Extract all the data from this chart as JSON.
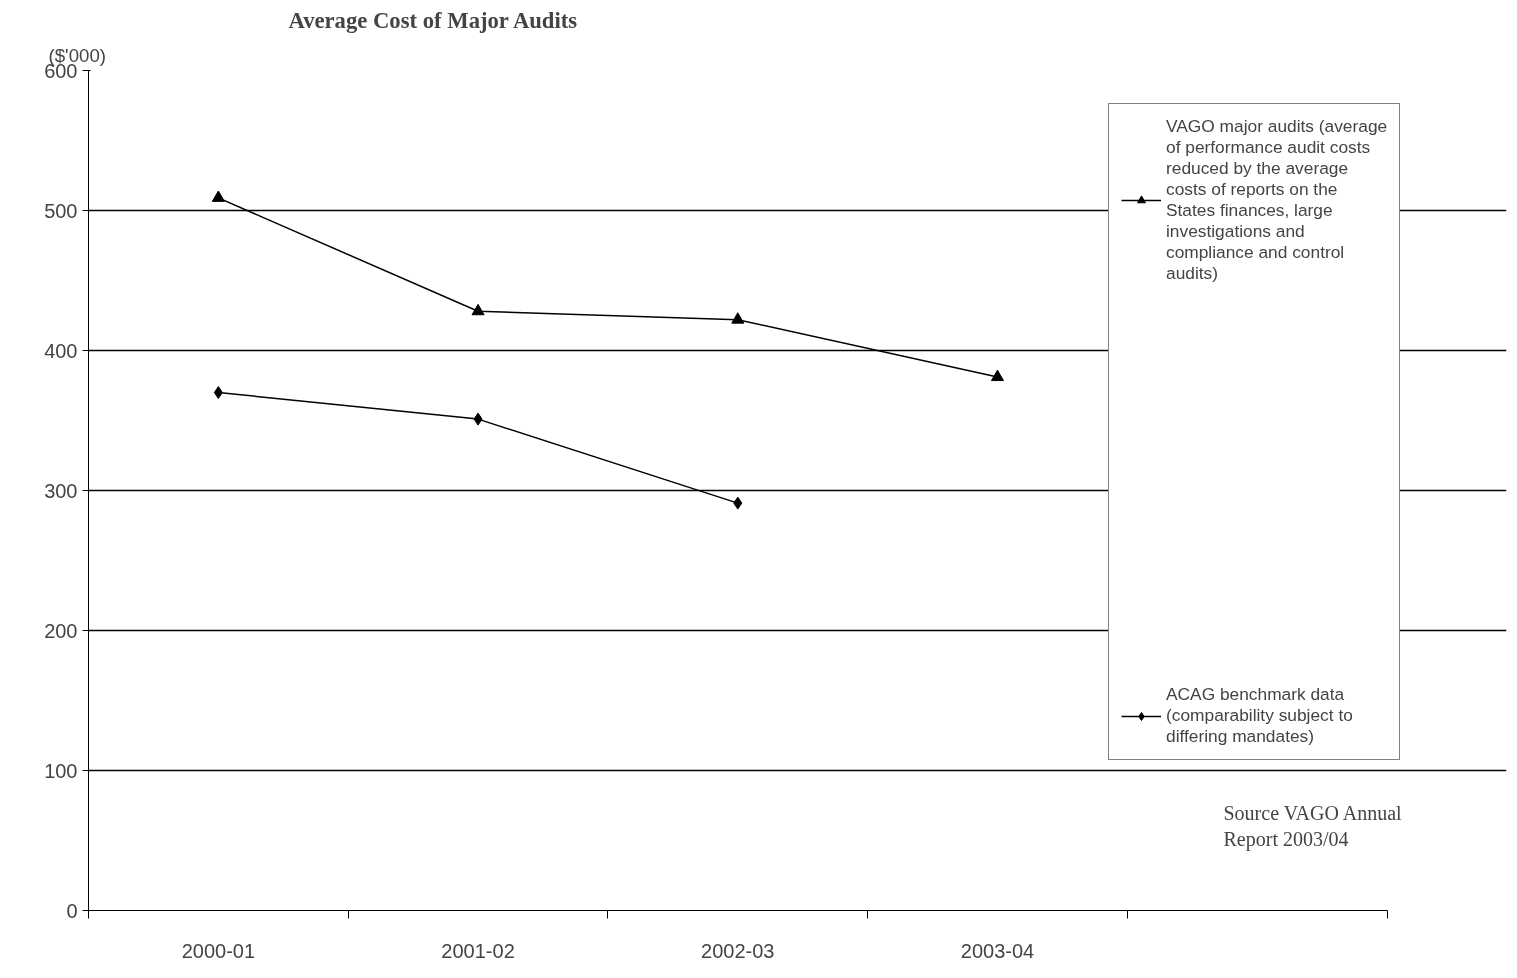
{
  "chart_data": {
    "type": "line",
    "title": "Average Cost of Major Audits",
    "ylabel": "($'000)",
    "categories": [
      "2000-01",
      "2001-02",
      "2002-03",
      "2003-04",
      null
    ],
    "series": [
      {
        "name": "VAGO major audits (average of performance audit costs reduced by the average costs of reports on the States finances, large investigations and compliance and control audits)",
        "color": "#000000",
        "marker": "triangle",
        "values": [
          509,
          428,
          422,
          381,
          null
        ]
      },
      {
        "name": "ACAG benchmark data (comparability subject to differing mandates)",
        "color": "#000000",
        "marker": "diamond",
        "values": [
          370,
          351,
          291,
          null,
          null
        ]
      }
    ],
    "ylim": [
      0,
      600
    ],
    "yticks": [
      0,
      100,
      200,
      300,
      400,
      500,
      600
    ],
    "grid": "y",
    "legend": "right",
    "line_style": "solid",
    "annotations": [
      "Source VAGO Annual Report 2003/04"
    ]
  }
}
